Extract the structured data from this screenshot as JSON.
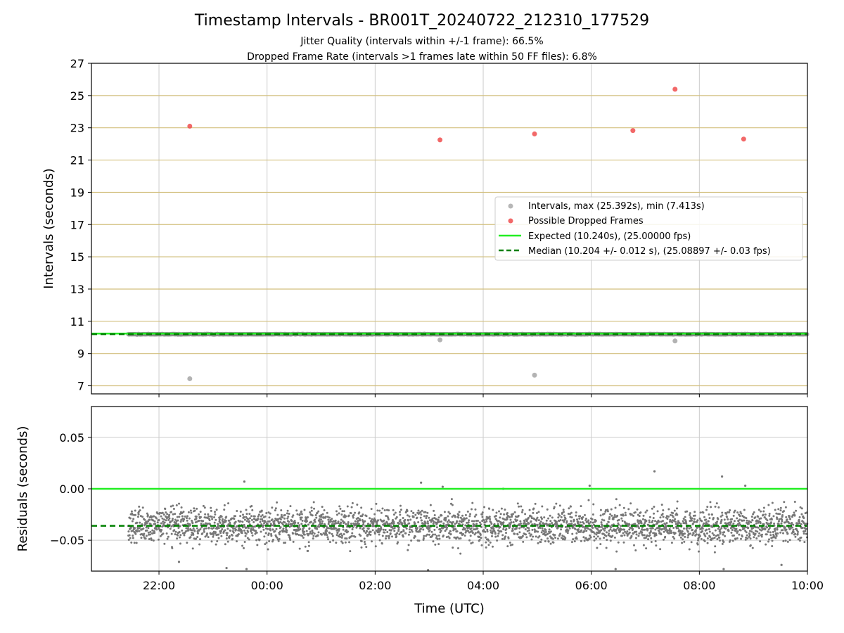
{
  "chart_data": [
    {
      "type": "scatter",
      "title": "Timestamp Intervals - BR001T_20240722_212310_177529",
      "subtitle_lines": [
        "Jitter Quality (intervals within +/-1 frame): 66.5%",
        "Dropped Frame Rate (intervals >1 frames late within 50 FF files): 6.8%"
      ],
      "ylabel": "Intervals (seconds)",
      "xlabel": "",
      "ylim": [
        6.5,
        27
      ],
      "yticks": [
        7,
        9,
        11,
        13,
        15,
        17,
        19,
        21,
        23,
        25,
        27
      ],
      "xlim_hours": [
        20.75,
        34.0
      ],
      "grid": "on",
      "legend_position": "center-right",
      "series": [
        {
          "name": "Intervals, max (25.392s), min (7.413s)",
          "kind": "scatter",
          "color": "#999999",
          "band": {
            "x_start_hours": 21.43,
            "x_end_hours": 34.0,
            "y": 10.2
          },
          "points": [
            {
              "x": 22.57,
              "y": 7.44
            },
            {
              "x": 27.2,
              "y": 9.85
            },
            {
              "x": 28.95,
              "y": 7.66
            },
            {
              "x": 31.55,
              "y": 9.78
            }
          ]
        },
        {
          "name": "Possible Dropped Frames",
          "kind": "scatter",
          "color": "#f04e4e",
          "points": [
            {
              "x": 22.57,
              "y": 23.1
            },
            {
              "x": 27.2,
              "y": 22.25
            },
            {
              "x": 28.95,
              "y": 22.62
            },
            {
              "x": 30.77,
              "y": 22.83
            },
            {
              "x": 31.55,
              "y": 25.39
            },
            {
              "x": 32.82,
              "y": 22.3
            }
          ]
        },
        {
          "name": "Expected (10.240s), (25.00000 fps)",
          "kind": "hline",
          "color": "#22ee22",
          "y": 10.24
        },
        {
          "name": "Median (10.204 +/- 0.012 s), (25.08897 +/- 0.03 fps)",
          "kind": "hline-dashed",
          "color": "#008000",
          "y": 10.204
        }
      ]
    },
    {
      "type": "scatter",
      "ylabel": "Residuals (seconds)",
      "xlabel": "Time (UTC)",
      "ylim": [
        -0.08,
        0.08
      ],
      "yticks": [
        0.05,
        0.0,
        -0.05
      ],
      "ytick_labels": [
        "0.05",
        "0.00",
        "−0.05"
      ],
      "xticks_hours": [
        22,
        24,
        26,
        28,
        30,
        32,
        34
      ],
      "xtick_labels": [
        "22:00",
        "00:00",
        "02:00",
        "04:00",
        "06:00",
        "08:00",
        "10:00"
      ],
      "xlim_hours": [
        20.75,
        34.0
      ],
      "grid": "on",
      "series": [
        {
          "kind": "scatter-cloud",
          "color": "#777777",
          "x_start_hours": 21.43,
          "x_end_hours": 34.0,
          "center": -0.036,
          "spread": 0.012,
          "outliers": [
            {
              "x": 23.58,
              "y": 0.007
            },
            {
              "x": 31.17,
              "y": 0.017
            },
            {
              "x": 32.42,
              "y": 0.012
            },
            {
              "x": 29.97,
              "y": 0.003
            },
            {
              "x": 28.37,
              "y": 0.0
            },
            {
              "x": 32.85,
              "y": 0.003
            },
            {
              "x": 26.85,
              "y": 0.006
            },
            {
              "x": 27.25,
              "y": 0.002
            },
            {
              "x": 23.25,
              "y": -0.077
            },
            {
              "x": 23.62,
              "y": -0.078
            },
            {
              "x": 22.37,
              "y": -0.071
            },
            {
              "x": 26.98,
              "y": -0.079
            },
            {
              "x": 30.45,
              "y": -0.078
            },
            {
              "x": 32.45,
              "y": -0.078
            },
            {
              "x": 33.52,
              "y": -0.074
            }
          ]
        },
        {
          "name": "Expected",
          "kind": "hline",
          "color": "#22ee22",
          "y": 0.0
        },
        {
          "name": "Median",
          "kind": "hline-dashed",
          "color": "#008000",
          "y": -0.036
        }
      ]
    }
  ]
}
